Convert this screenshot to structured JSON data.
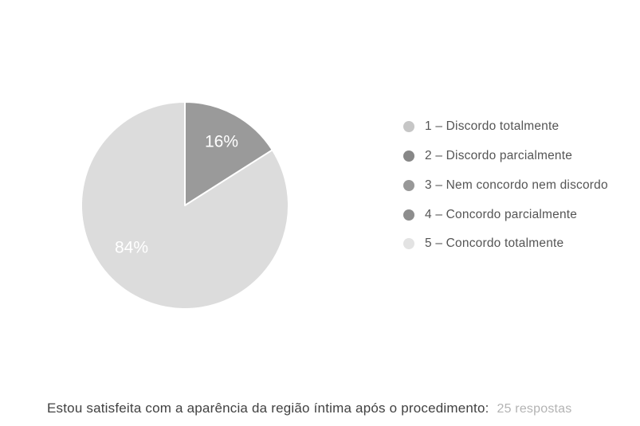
{
  "chart_data": {
    "type": "pie",
    "question": "Estou satisfeita com a aparência da região íntima após o procedimento:",
    "responses_count": "25 respostas",
    "categories": [
      "1 – Discordo totalmente",
      "2 – Discordo parcialmente",
      "3 – Nem concordo nem discordo",
      "4 – Concordo parcialmente",
      "5 – Concordo totalmente"
    ],
    "values_percent": [
      0,
      0,
      0,
      16,
      84
    ],
    "visible_slice_labels": [
      "16%",
      "84%"
    ],
    "legend_position": "right",
    "start_angle_deg": 0,
    "direction": "clockwise",
    "legend_colors": [
      "#c6c6c6",
      "#878787",
      "#989898",
      "#8d8d8d",
      "#e3e3e3"
    ],
    "slice_colors": [
      "#c6c6c6",
      "#878787",
      "#989898",
      "#9a9a9a",
      "#dcdcdc"
    ],
    "slice_label_color": "#ffffff",
    "slice_divider_color": "#ffffff"
  }
}
